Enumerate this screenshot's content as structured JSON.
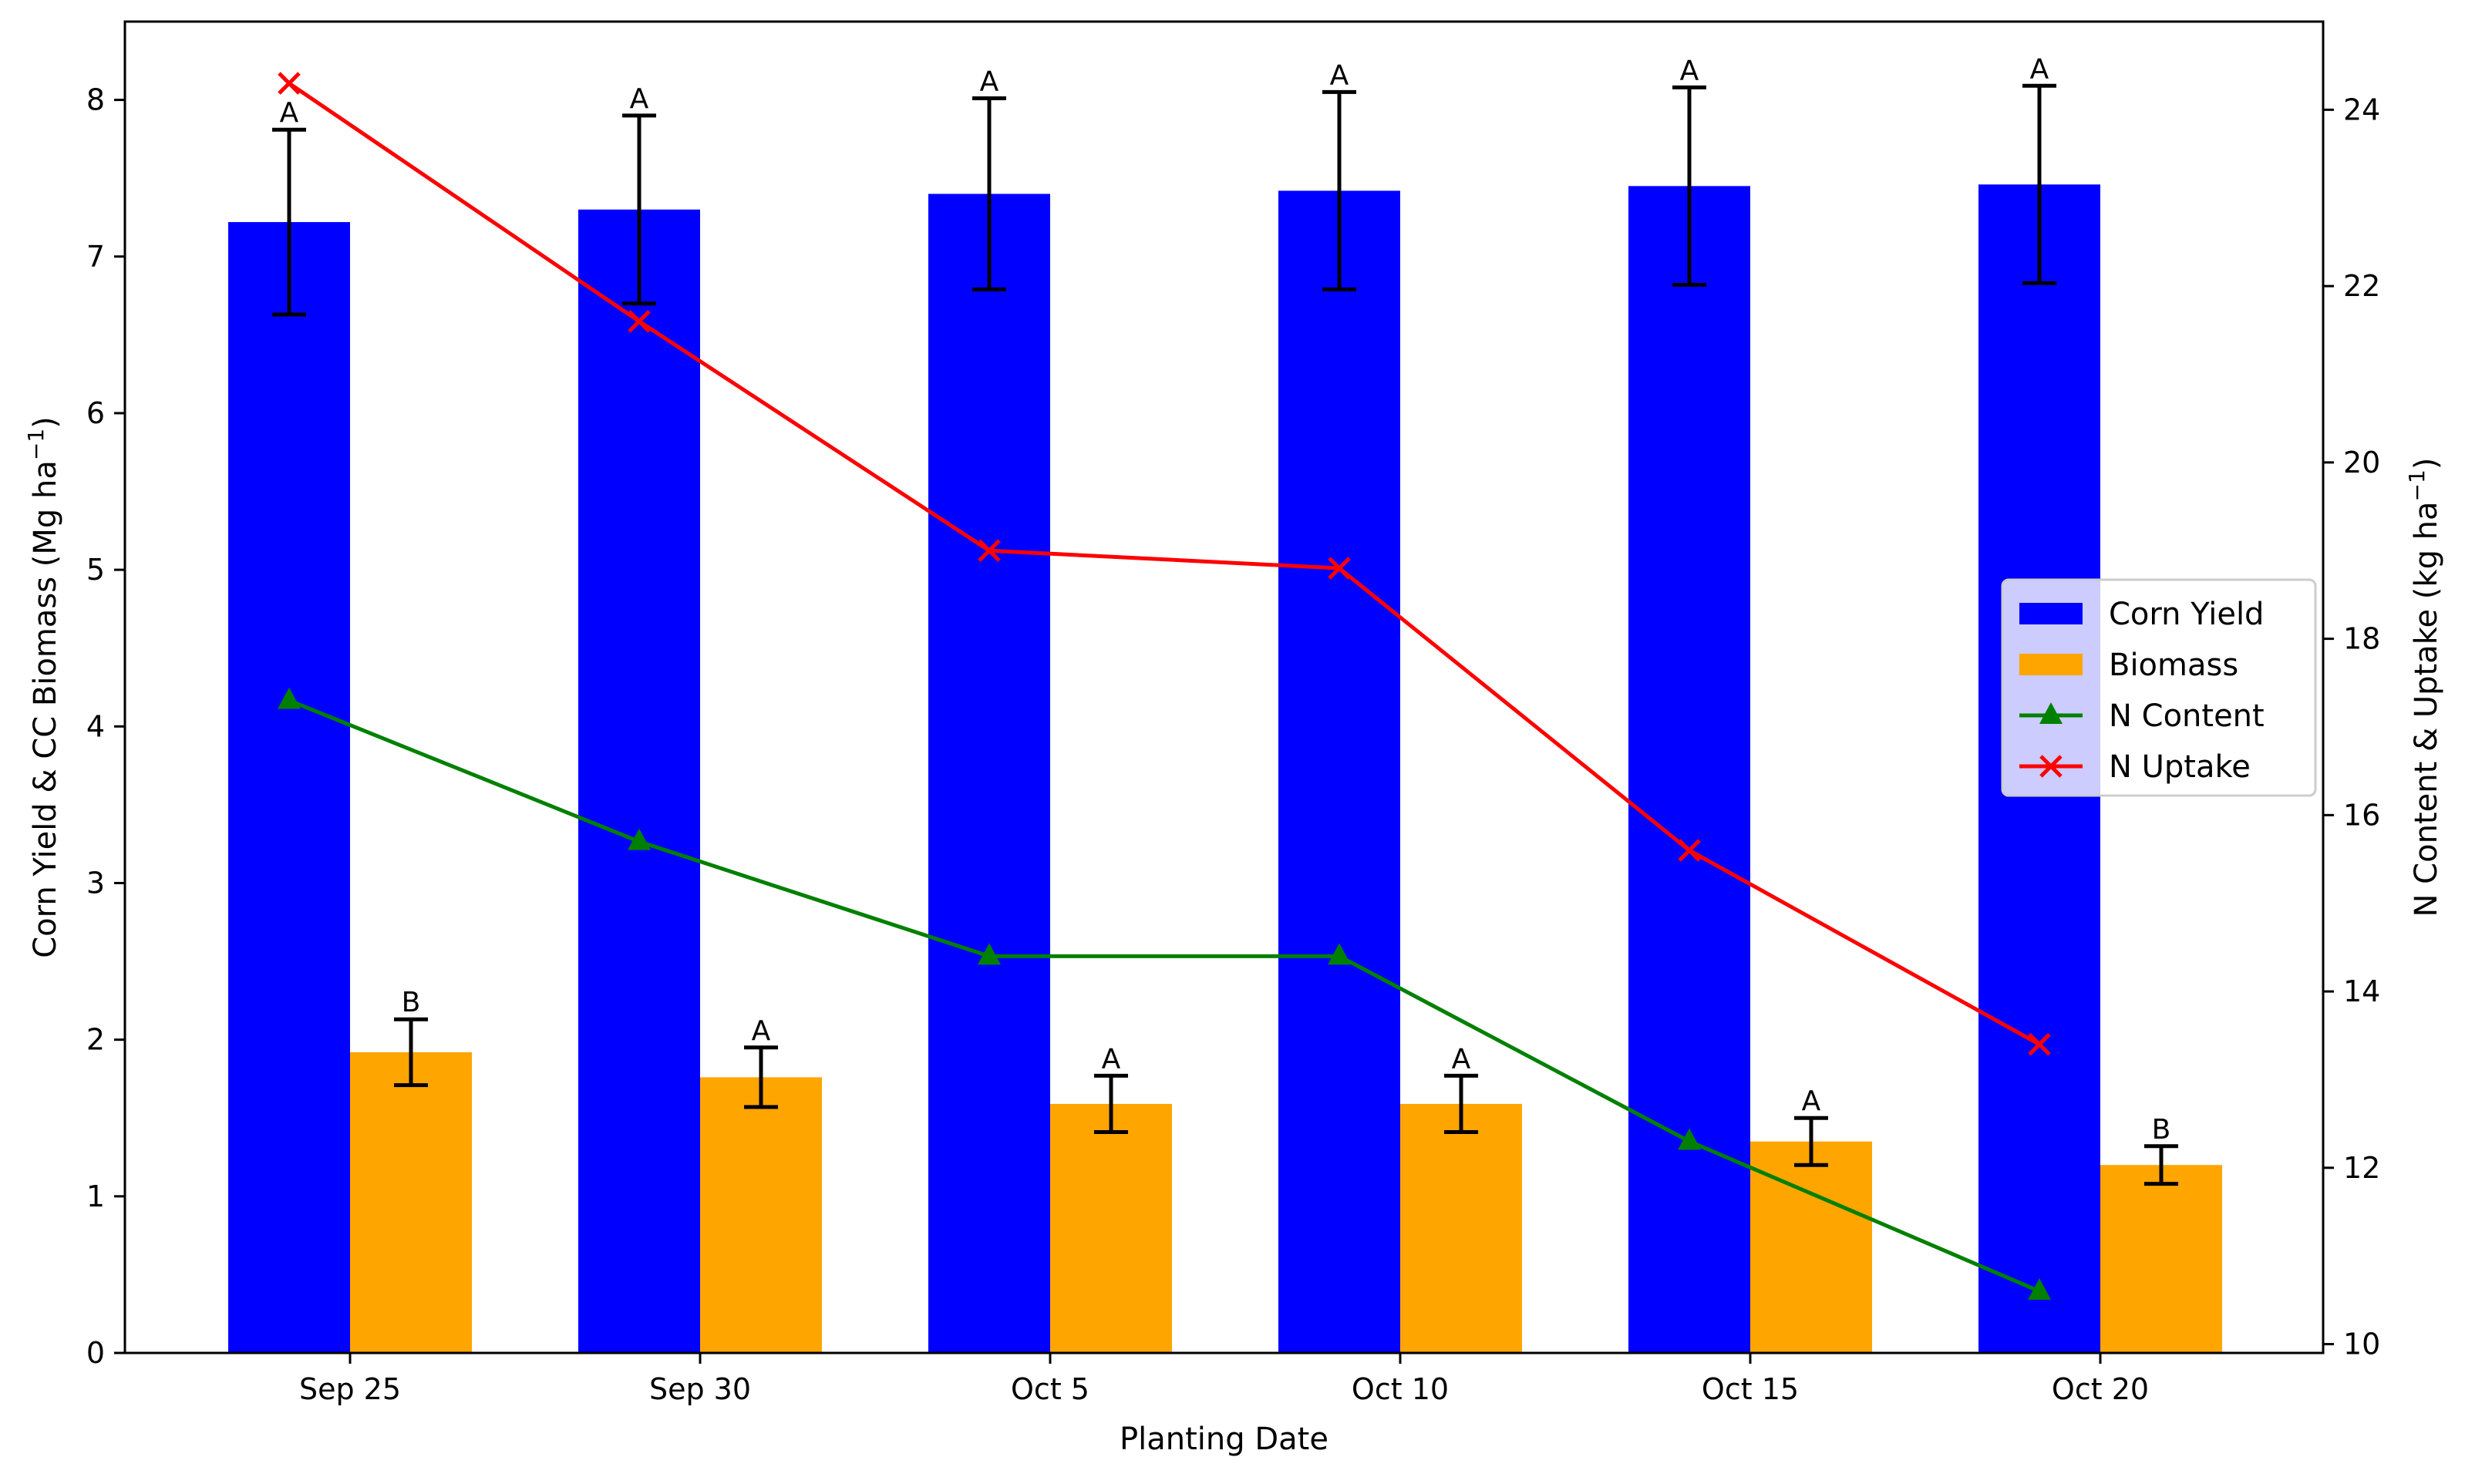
{
  "chart_data": {
    "type": "bar",
    "categories": [
      "Sep 25",
      "Sep 30",
      "Oct 5",
      "Oct 10",
      "Oct 15",
      "Oct 20"
    ],
    "xlabel": "Planting Date",
    "ylabel_left": "Corn Yield & CC Biomass (Mg ha",
    "ylabel_right": "N Content & Uptake (kg ha",
    "ylabel_superscript": "−1",
    "ylabel_close": ")",
    "ylim_left": [
      0,
      8.5
    ],
    "ylim_right": [
      9.9,
      25
    ],
    "yticks_left": [
      "0",
      "1",
      "2",
      "3",
      "4",
      "5",
      "6",
      "7",
      "8"
    ],
    "yticks_right": [
      "10",
      "12",
      "14",
      "16",
      "18",
      "20",
      "22",
      "24"
    ],
    "bar_series": [
      {
        "name": "Corn Yield",
        "axis": "left",
        "color": "#0000ff",
        "values": [
          7.22,
          7.3,
          7.4,
          7.42,
          7.45,
          7.46
        ],
        "errors": [
          0.59,
          0.6,
          0.61,
          0.63,
          0.63,
          0.63
        ],
        "letters": [
          "A",
          "A",
          "A",
          "A",
          "A",
          "A"
        ]
      },
      {
        "name": "Biomass",
        "axis": "left",
        "color": "#ffa500",
        "values": [
          1.92,
          1.76,
          1.59,
          1.59,
          1.35,
          1.2
        ],
        "errors": [
          0.21,
          0.19,
          0.18,
          0.18,
          0.15,
          0.12
        ],
        "letters": [
          "B",
          "A",
          "A",
          "A",
          "A",
          "B"
        ]
      }
    ],
    "line_series": [
      {
        "name": "N Content",
        "axis": "right",
        "color": "#008000",
        "marker": "triangle",
        "values": [
          17.3,
          15.7,
          14.4,
          14.4,
          12.3,
          10.6
        ]
      },
      {
        "name": "N Uptake",
        "axis": "right",
        "color": "#ff0000",
        "marker": "x",
        "values": [
          24.3,
          21.6,
          19.0,
          18.8,
          15.6,
          13.4
        ]
      }
    ],
    "legend_entries": [
      "Corn Yield",
      "Biomass",
      "N Content",
      "N Uptake"
    ],
    "legend_placement": "center-right",
    "grid": false
  }
}
